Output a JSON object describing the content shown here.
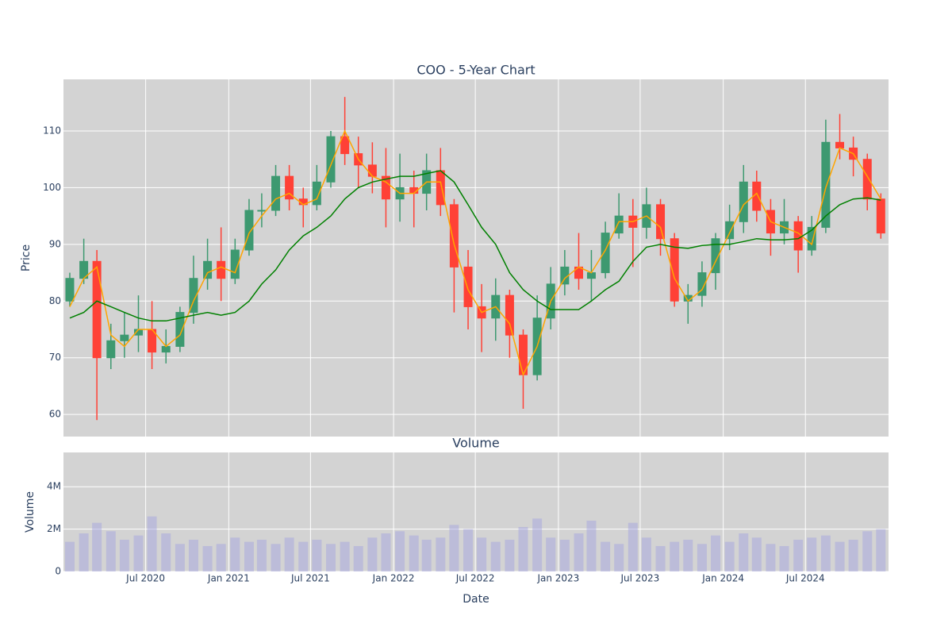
{
  "chart_data": [
    {
      "type": "candlestick",
      "title": "COO - 5-Year Chart",
      "y_label": "Price",
      "x": [
        "2020-01",
        "2020-02",
        "2020-03",
        "2020-04",
        "2020-05",
        "2020-06",
        "2020-07",
        "2020-08",
        "2020-09",
        "2020-10",
        "2020-11",
        "2020-12",
        "2021-01",
        "2021-02",
        "2021-03",
        "2021-04",
        "2021-05",
        "2021-06",
        "2021-07",
        "2021-08",
        "2021-09",
        "2021-10",
        "2021-11",
        "2021-12",
        "2022-01",
        "2022-02",
        "2022-03",
        "2022-04",
        "2022-05",
        "2022-06",
        "2022-07",
        "2022-08",
        "2022-09",
        "2022-10",
        "2022-11",
        "2022-12",
        "2023-01",
        "2023-02",
        "2023-03",
        "2023-04",
        "2023-05",
        "2023-06",
        "2023-07",
        "2023-08",
        "2023-09",
        "2023-10",
        "2023-11",
        "2023-12",
        "2024-01",
        "2024-02",
        "2024-03",
        "2024-04",
        "2024-05",
        "2024-06",
        "2024-07",
        "2024-08",
        "2024-09",
        "2024-10",
        "2024-11",
        "2024-12"
      ],
      "open": [
        80,
        84,
        87,
        70,
        73,
        74,
        75,
        71,
        72,
        78,
        84,
        87,
        84,
        89,
        96,
        96,
        102,
        98,
        97,
        101,
        109,
        106,
        104,
        102,
        98,
        100,
        99,
        103,
        97,
        86,
        79,
        77,
        81,
        74,
        67,
        77,
        83,
        86,
        84,
        85,
        92,
        95,
        93,
        97,
        91,
        80,
        81,
        85,
        91,
        94,
        101,
        96,
        92,
        94,
        89,
        93,
        108,
        107,
        105,
        98
      ],
      "high": [
        85,
        91,
        89,
        76,
        78,
        81,
        80,
        75,
        79,
        88,
        91,
        93,
        91,
        98,
        99,
        104,
        104,
        100,
        104,
        110,
        116,
        109,
        108,
        107,
        106,
        103,
        106,
        107,
        98,
        89,
        83,
        84,
        82,
        75,
        81,
        86,
        89,
        92,
        89,
        94,
        99,
        98,
        100,
        98,
        92,
        83,
        87,
        92,
        97,
        104,
        103,
        98,
        98,
        95,
        95,
        112,
        113,
        109,
        106,
        99
      ],
      "low": [
        79,
        83,
        59,
        68,
        70,
        71,
        68,
        69,
        71,
        76,
        82,
        80,
        83,
        88,
        93,
        95,
        96,
        93,
        96,
        100,
        104,
        100,
        99,
        93,
        94,
        93,
        96,
        95,
        78,
        75,
        71,
        73,
        70,
        61,
        66,
        75,
        81,
        82,
        80,
        84,
        91,
        86,
        91,
        88,
        79,
        76,
        79,
        82,
        89,
        92,
        94,
        88,
        90,
        85,
        88,
        92,
        105,
        102,
        96,
        91
      ],
      "close": [
        84,
        87,
        70,
        73,
        74,
        75,
        71,
        72,
        78,
        84,
        87,
        84,
        89,
        96,
        96,
        102,
        98,
        97,
        101,
        109,
        106,
        104,
        102,
        98,
        100,
        99,
        103,
        97,
        86,
        79,
        77,
        81,
        74,
        67,
        77,
        83,
        86,
        84,
        85,
        92,
        95,
        93,
        97,
        91,
        80,
        81,
        85,
        91,
        94,
        101,
        96,
        92,
        94,
        89,
        93,
        108,
        107,
        105,
        98,
        92
      ],
      "increasing_color": "#3d9970",
      "decreasing_color": "#ff4136",
      "series": [
        {
          "color": "#ffa500",
          "values": [
            79,
            84,
            86,
            74,
            72,
            75,
            75,
            72,
            74,
            80,
            85,
            86,
            85,
            92,
            95,
            98,
            99,
            97,
            98,
            104,
            110,
            105,
            102,
            101,
            99,
            99,
            101,
            101,
            90,
            82,
            78,
            79,
            76,
            67,
            72,
            80,
            84,
            86,
            85,
            89,
            94,
            94,
            95,
            93,
            84,
            80,
            82,
            87,
            92,
            97,
            99,
            94,
            93,
            92,
            90,
            100,
            107,
            106,
            102,
            98
          ]
        },
        {
          "color": "#008000",
          "values": [
            77,
            78,
            80,
            79,
            78,
            77,
            76.5,
            76.5,
            77,
            77.5,
            78,
            77.5,
            78,
            80,
            83,
            85.5,
            89,
            91.5,
            93,
            95,
            98,
            100,
            101,
            101.5,
            102,
            102,
            102.5,
            103,
            101,
            97,
            93,
            90,
            85,
            82,
            80,
            78.5,
            78.5,
            78.5,
            80,
            82,
            83.5,
            87,
            89.5,
            90,
            89.5,
            89.3,
            89.8,
            90,
            90,
            90.5,
            91,
            90.8,
            90.8,
            91,
            92.5,
            95,
            97,
            98,
            98.2,
            97.8
          ]
        }
      ],
      "xlim": [
        "2020-01-01",
        "2025-01-01"
      ],
      "ylim": [
        56.1,
        119.1
      ],
      "yticks": [
        60,
        70,
        80,
        90,
        100,
        110
      ],
      "grid": true
    },
    {
      "type": "bar",
      "title": "Volume",
      "x_label": "Date",
      "y_label": "Volume",
      "color": "rgba(160,160,225,0.45)",
      "values": [
        1400000,
        1800000,
        2300000,
        1900000,
        1500000,
        1700000,
        2600000,
        1800000,
        1300000,
        1500000,
        1200000,
        1300000,
        1600000,
        1400000,
        1500000,
        1300000,
        1600000,
        1400000,
        1500000,
        1300000,
        1400000,
        1200000,
        1600000,
        1800000,
        1900000,
        1700000,
        1500000,
        1600000,
        2200000,
        2000000,
        1600000,
        1400000,
        1500000,
        2100000,
        2500000,
        1600000,
        1500000,
        1800000,
        2400000,
        1400000,
        1300000,
        2300000,
        1600000,
        1200000,
        1400000,
        1500000,
        1300000,
        1700000,
        1400000,
        1800000,
        1600000,
        1300000,
        1200000,
        1500000,
        1600000,
        1700000,
        1400000,
        1500000,
        1900000,
        2000000
      ],
      "xlim": [
        "2020-01-01",
        "2025-01-01"
      ],
      "xticks": [
        {
          "value": "2020-07-01",
          "label": "Jul 2020"
        },
        {
          "value": "2021-01-01",
          "label": "Jan 2021"
        },
        {
          "value": "2021-07-01",
          "label": "Jul 2021"
        },
        {
          "value": "2022-01-01",
          "label": "Jan 2022"
        },
        {
          "value": "2022-07-01",
          "label": "Jul 2022"
        },
        {
          "value": "2023-01-01",
          "label": "Jan 2023"
        },
        {
          "value": "2023-07-01",
          "label": "Jul 2023"
        },
        {
          "value": "2024-01-01",
          "label": "Jan 2024"
        },
        {
          "value": "2024-07-01",
          "label": "Jul 2024"
        }
      ],
      "ylim": [
        0,
        5620000
      ],
      "yticks": [
        0,
        {
          "value": 2000000,
          "label": "2M"
        },
        {
          "value": 4000000,
          "label": "4M"
        }
      ],
      "grid": true
    }
  ]
}
